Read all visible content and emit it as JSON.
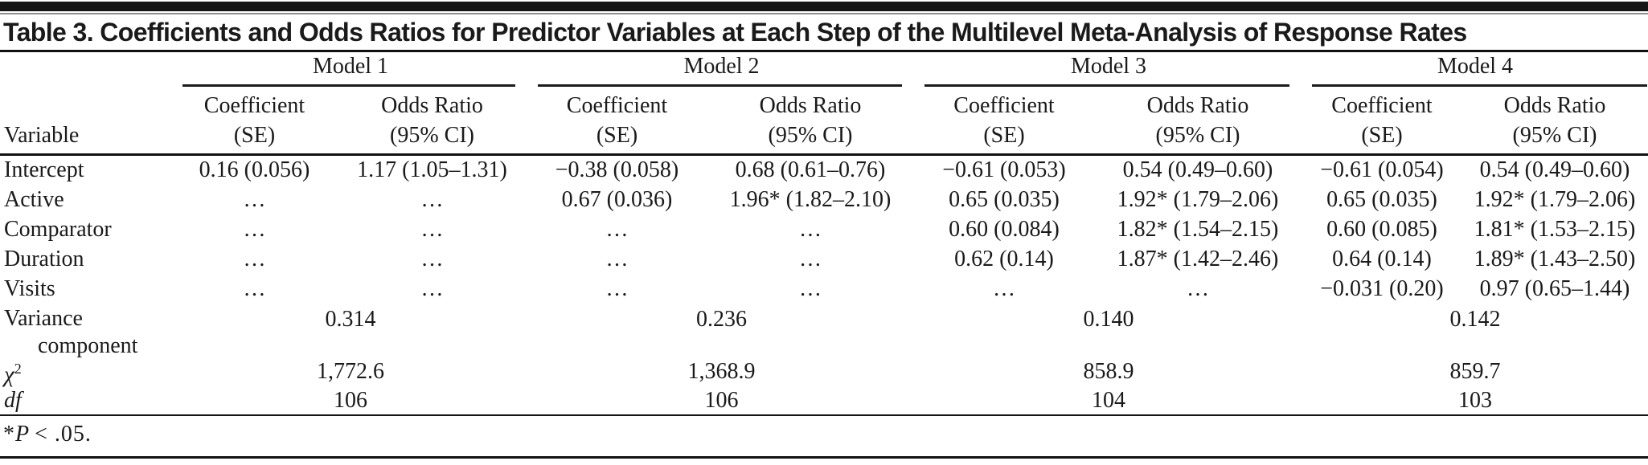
{
  "title": "Table 3. Coefficients and Odds Ratios for Predictor Variables at Each Step of the Multilevel Meta-Analysis of Response Rates",
  "table": {
    "variable_header": "Variable",
    "models": [
      "Model 1",
      "Model 2",
      "Model 3",
      "Model 4"
    ],
    "sub_headers": {
      "coefficient_line1": "Coefficient",
      "coefficient_line2": "(SE)",
      "odds_line1": "Odds Ratio",
      "odds_line2": "(95% CI)"
    },
    "rows": [
      {
        "label": "Intercept",
        "cells": [
          "0.16 (0.056)",
          "1.17 (1.05–1.31)",
          "−0.38 (0.058)",
          "0.68 (0.61–0.76)",
          "−0.61 (0.053)",
          "0.54 (0.49–0.60)",
          "−0.61 (0.054)",
          "0.54 (0.49–0.60)"
        ]
      },
      {
        "label": "Active",
        "cells": [
          "…",
          "…",
          "0.67 (0.036)",
          "1.96* (1.82–2.10)",
          "0.65 (0.035)",
          "1.92* (1.79–2.06)",
          "0.65 (0.035)",
          "1.92* (1.79–2.06)"
        ]
      },
      {
        "label": "Comparator",
        "cells": [
          "…",
          "…",
          "…",
          "…",
          "0.60 (0.084)",
          "1.82* (1.54–2.15)",
          "0.60 (0.085)",
          "1.81* (1.53–2.15)"
        ]
      },
      {
        "label": "Duration",
        "cells": [
          "…",
          "…",
          "…",
          "…",
          "0.62 (0.14)",
          "1.87* (1.42–2.46)",
          "0.64 (0.14)",
          "1.89* (1.43–2.50)"
        ]
      },
      {
        "label": "Visits",
        "cells": [
          "…",
          "…",
          "…",
          "…",
          "…",
          "…",
          "−0.031 (0.20)",
          "0.97 (0.65–1.44)"
        ]
      }
    ],
    "span_rows": [
      {
        "label": "Variance",
        "values": [
          "0.314",
          "0.236",
          "0.140",
          "0.142"
        ]
      },
      {
        "label_full": "χ2 component",
        "label_top": "component",
        "label_base": "χ",
        "label_sup": "2",
        "values": [
          "1,772.6",
          "1,368.9",
          "858.9",
          "859.7"
        ]
      },
      {
        "label": "df",
        "values": [
          "106",
          "106",
          "104",
          "103"
        ]
      }
    ],
    "footnote": {
      "star": "*",
      "p_symbol": "P",
      "rest": "< .05."
    }
  }
}
